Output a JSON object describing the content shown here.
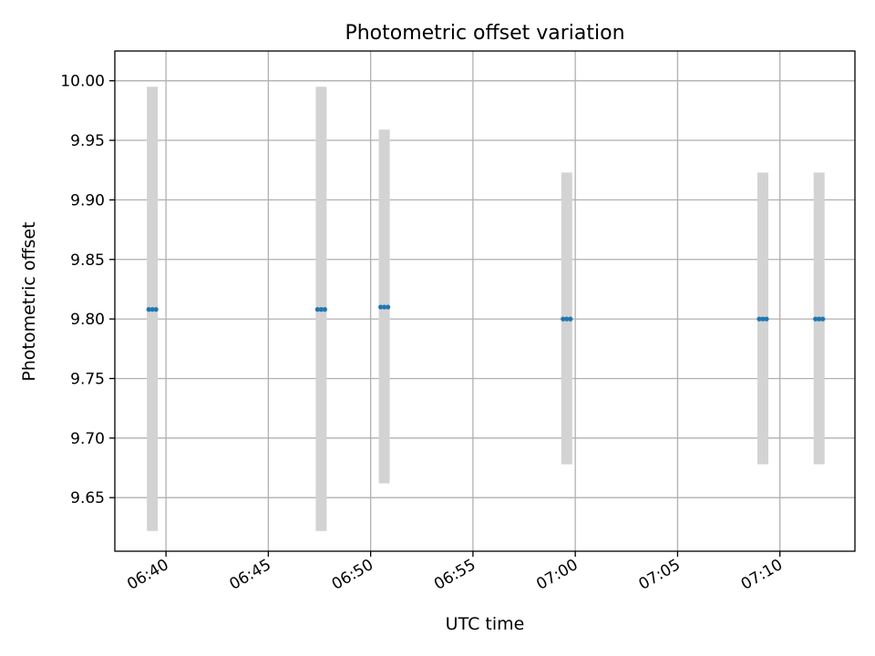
{
  "chart_data": {
    "type": "scatter",
    "title": "Photometric offset variation",
    "xlabel": "UTC time",
    "ylabel": "Photometric offset",
    "grid": true,
    "xlim": [
      "06:37:30",
      "07:13:40"
    ],
    "ylim": [
      9.605,
      10.025
    ],
    "x_ticks": [
      "06:40",
      "06:45",
      "06:50",
      "06:55",
      "07:00",
      "07:05",
      "07:10"
    ],
    "y_ticks": [
      "9.65",
      "9.70",
      "9.75",
      "9.80",
      "9.85",
      "9.90",
      "9.95",
      "10.00"
    ],
    "series": [
      {
        "points": [
          {
            "x": "06:39:20",
            "y": 9.808,
            "yerr_low": 9.622,
            "yerr_high": 9.995
          },
          {
            "x": "06:47:35",
            "y": 9.808,
            "yerr_low": 9.622,
            "yerr_high": 9.995
          },
          {
            "x": "06:50:40",
            "y": 9.81,
            "yerr_low": 9.662,
            "yerr_high": 9.959
          },
          {
            "x": "06:59:35",
            "y": 9.8,
            "yerr_low": 9.678,
            "yerr_high": 9.923
          },
          {
            "x": "07:09:10",
            "y": 9.8,
            "yerr_low": 9.678,
            "yerr_high": 9.923
          },
          {
            "x": "07:11:55",
            "y": 9.8,
            "yerr_low": 9.678,
            "yerr_high": 9.923
          }
        ]
      }
    ],
    "colors": {
      "marker": "#1f77b4",
      "errorbar": "#d3d3d3",
      "grid": "#b0b0b0",
      "axes": "#000000"
    }
  }
}
